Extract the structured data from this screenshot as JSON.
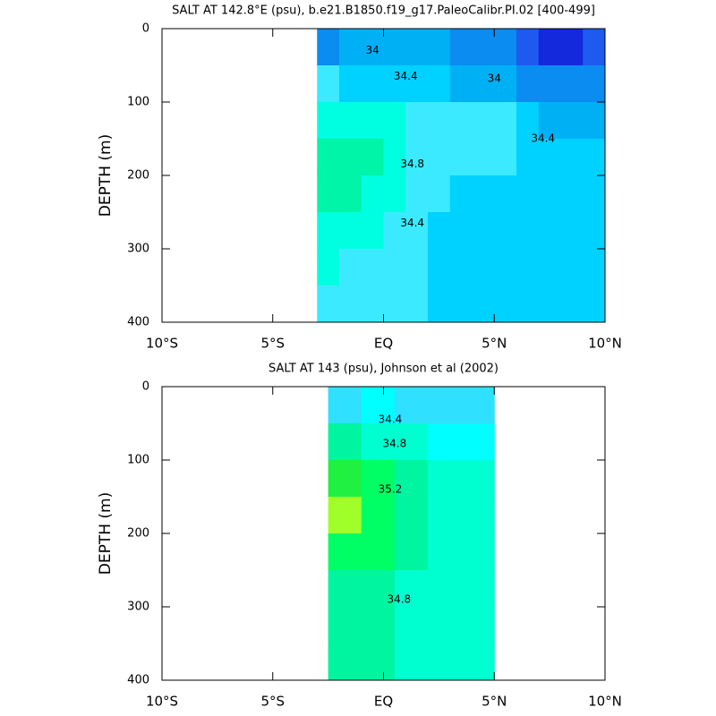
{
  "chart_data": [
    {
      "type": "contour",
      "title": "SALT AT 142.8°E (psu), b.e21.B1850.f19_g17.PaleoCalibr.PI.02 [400-499]",
      "y_label": "DEPTH (m)",
      "xlim": [
        -10,
        10
      ],
      "ylim": [
        400,
        0
      ],
      "xticks": [
        {
          "value": -10,
          "label": "10°S"
        },
        {
          "value": -5,
          "label": "5°S"
        },
        {
          "value": 0,
          "label": "EQ"
        },
        {
          "value": 5,
          "label": "5°N"
        },
        {
          "value": 10,
          "label": "10°N"
        }
      ],
      "yticks": [
        0,
        100,
        200,
        300,
        400
      ],
      "levels": [
        33.6,
        33.8,
        34,
        34.2,
        34.4,
        34.6,
        34.8,
        35,
        35.2,
        35.4
      ],
      "colors": [
        "#1428dc",
        "#1e5af0",
        "#0a8cf0",
        "#00b0f5",
        "#00d2ff",
        "#3ceaff",
        "#00ffe0",
        "#00f5a8",
        "#00ff64",
        "#40ff40",
        "#a0ff28"
      ],
      "x": [
        -2.5,
        -1.5,
        -0.5,
        0.5,
        1.5,
        2.5,
        3.5,
        4.5,
        5.5,
        6.5,
        7.5,
        8.5,
        9.5
      ],
      "y": [
        25,
        75,
        125,
        175,
        225,
        275,
        325,
        375
      ],
      "z": [
        [
          33.9,
          34.05,
          34.1,
          34.1,
          34.1,
          34.1,
          33.9,
          33.8,
          33.8,
          33.6,
          33.5,
          33.5,
          33.6
        ],
        [
          34.4,
          34.35,
          34.35,
          34.3,
          34.3,
          34.2,
          34.1,
          34.0,
          34.0,
          33.95,
          33.9,
          33.9,
          33.9
        ],
        [
          34.6,
          34.7,
          34.65,
          34.6,
          34.5,
          34.45,
          34.45,
          34.45,
          34.4,
          34.2,
          34.15,
          34.1,
          34.1
        ],
        [
          34.85,
          34.9,
          34.85,
          34.7,
          34.55,
          34.5,
          34.5,
          34.45,
          34.4,
          34.35,
          34.3,
          34.3,
          34.3
        ],
        [
          34.8,
          34.8,
          34.75,
          34.65,
          34.5,
          34.4,
          34.3,
          34.3,
          34.3,
          34.3,
          34.3,
          34.3,
          34.3
        ],
        [
          34.65,
          34.65,
          34.6,
          34.5,
          34.45,
          34.3,
          34.3,
          34.3,
          34.3,
          34.3,
          34.3,
          34.3,
          34.3
        ],
        [
          34.6,
          34.55,
          34.5,
          34.5,
          34.45,
          34.3,
          34.3,
          34.3,
          34.3,
          34.3,
          34.3,
          34.3,
          34.3
        ],
        [
          34.5,
          34.45,
          34.45,
          34.45,
          34.4,
          34.3,
          34.3,
          34.3,
          34.3,
          34.3,
          34.3,
          34.3,
          34.3
        ]
      ],
      "contour_labels": [
        {
          "value": 34,
          "x": -0.5,
          "y": 30
        },
        {
          "value": 34.4,
          "x": 1,
          "y": 65
        },
        {
          "value": 34,
          "x": 5,
          "y": 68
        },
        {
          "value": 34.4,
          "x": 7.2,
          "y": 150
        },
        {
          "value": 34.8,
          "x": 1.3,
          "y": 185
        },
        {
          "value": 34.4,
          "x": 1.3,
          "y": 265
        }
      ]
    },
    {
      "type": "contour",
      "title": "SALT AT 143 (psu), Johnson et al (2002)",
      "y_label": "DEPTH (m)",
      "xlim": [
        -10,
        10
      ],
      "ylim": [
        400,
        0
      ],
      "xticks": [
        {
          "value": -10,
          "label": "10°S"
        },
        {
          "value": -5,
          "label": "5°S"
        },
        {
          "value": 0,
          "label": "EQ"
        },
        {
          "value": 5,
          "label": "5°N"
        },
        {
          "value": 10,
          "label": "10°N"
        }
      ],
      "yticks": [
        0,
        100,
        200,
        300,
        400
      ],
      "levels": [
        33.6,
        33.8,
        34,
        34.2,
        34.4,
        34.6,
        34.8,
        35,
        35.2,
        35.4
      ],
      "colors": [
        "#1428dc",
        "#1e5af0",
        "#0a8cf0",
        "#00b0f5",
        "#30e0ff",
        "#00ffff",
        "#00ffd0",
        "#00f5a0",
        "#00ff64",
        "#20f040",
        "#a0ff28"
      ],
      "x": [
        -1.75,
        -0.25,
        1.25,
        2.75,
        4.25
      ],
      "y": [
        25,
        75,
        125,
        175,
        225,
        275,
        325,
        375
      ],
      "z": [
        [
          34.3,
          34.4,
          34.3,
          34.3,
          34.2
        ],
        [
          34.8,
          34.7,
          34.6,
          34.55,
          34.45
        ],
        [
          35.2,
          35.1,
          34.9,
          34.7,
          34.6
        ],
        [
          35.45,
          35.1,
          34.9,
          34.7,
          34.6
        ],
        [
          35.1,
          35.0,
          34.8,
          34.65,
          34.6
        ],
        [
          34.95,
          34.9,
          34.75,
          34.6,
          34.6
        ],
        [
          34.9,
          34.85,
          34.7,
          34.6,
          34.6
        ],
        [
          34.85,
          34.8,
          34.7,
          34.6,
          34.6
        ]
      ],
      "contour_labels": [
        {
          "value": 34.4,
          "x": 0.3,
          "y": 45
        },
        {
          "value": 34.8,
          "x": 0.5,
          "y": 78
        },
        {
          "value": 35.2,
          "x": 0.3,
          "y": 140
        },
        {
          "value": 34.8,
          "x": 0.7,
          "y": 290
        }
      ]
    }
  ]
}
